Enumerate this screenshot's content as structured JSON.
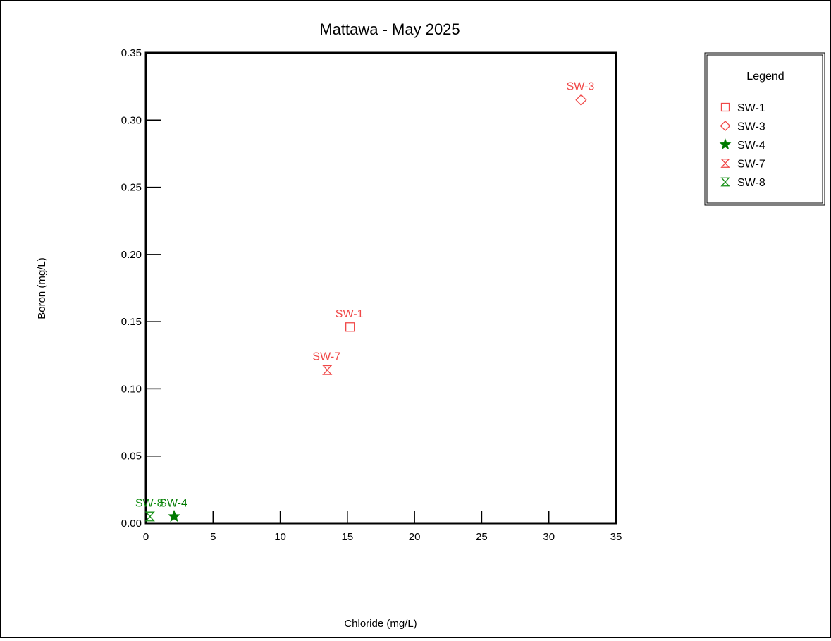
{
  "chart_data": {
    "type": "scatter",
    "title": "Mattawa - May 2025",
    "xlabel": "Chloride (mg/L)",
    "ylabel": "Boron (mg/L)",
    "xlim": [
      0,
      35
    ],
    "ylim": [
      0,
      0.35
    ],
    "x_ticks": [
      "0",
      "5",
      "10",
      "15",
      "20",
      "25",
      "30",
      "35"
    ],
    "y_ticks": [
      "0.00",
      "0.05",
      "0.10",
      "0.15",
      "0.20",
      "0.25",
      "0.30",
      "0.35"
    ],
    "grid": false,
    "legend_title": "Legend",
    "legend_position": "right",
    "series": [
      {
        "name": "SW-1",
        "marker": "square",
        "color": "#f04848",
        "x": [
          15.2
        ],
        "y": [
          0.146
        ]
      },
      {
        "name": "SW-3",
        "marker": "diamond",
        "color": "#f04848",
        "x": [
          32.4
        ],
        "y": [
          0.315
        ]
      },
      {
        "name": "SW-4",
        "marker": "star",
        "color": "#007a00",
        "x": [
          2.1
        ],
        "y": [
          0.005
        ]
      },
      {
        "name": "SW-7",
        "marker": "hourglass",
        "color": "#f04848",
        "x": [
          13.5
        ],
        "y": [
          0.114
        ]
      },
      {
        "name": "SW-8",
        "marker": "hourglass",
        "color": "#159015",
        "x": [
          0.3
        ],
        "y": [
          0.005
        ]
      }
    ]
  }
}
